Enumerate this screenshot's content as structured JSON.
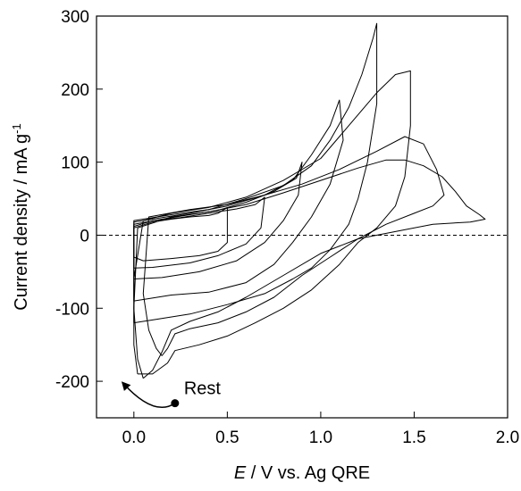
{
  "chart_data": {
    "type": "line",
    "title": "",
    "xlabel_italic": "E",
    "xlabel_rest": " / V vs. Ag QRE",
    "ylabel": "Current density / mA g",
    "ylabel_sup": "-1",
    "xlim": [
      -0.2,
      2.0
    ],
    "ylim": [
      -250,
      300
    ],
    "xticks": [
      0.0,
      0.5,
      1.0,
      1.5,
      2.0
    ],
    "xtick_labels": [
      "0.0",
      "0.5",
      "1.0",
      "1.5",
      "2.0"
    ],
    "yticks": [
      -200,
      -100,
      0,
      100,
      200,
      300
    ],
    "ytick_labels": [
      "-200",
      "-100",
      "0",
      "100",
      "200",
      "300"
    ],
    "grid": false,
    "zero_line": {
      "y": 0,
      "style": "dashed"
    },
    "annotation": {
      "text": "Rest",
      "start": [
        0.22,
        -230
      ],
      "end": [
        -0.06,
        -202
      ]
    },
    "series": [
      {
        "values": [
          [
            0.0,
            -30
          ],
          [
            0.0,
            10
          ],
          [
            0.1,
            18
          ],
          [
            0.2,
            22
          ],
          [
            0.3,
            25
          ],
          [
            0.4,
            27
          ],
          [
            0.45,
            30
          ],
          [
            0.5,
            38
          ],
          [
            0.5,
            -10
          ],
          [
            0.45,
            -22
          ],
          [
            0.35,
            -28
          ],
          [
            0.2,
            -32
          ],
          [
            0.05,
            -35
          ],
          [
            0.0,
            -30
          ]
        ]
      },
      {
        "values": [
          [
            0.0,
            -45
          ],
          [
            0.0,
            12
          ],
          [
            0.1,
            20
          ],
          [
            0.25,
            24
          ],
          [
            0.4,
            30
          ],
          [
            0.55,
            36
          ],
          [
            0.65,
            42
          ],
          [
            0.7,
            52
          ],
          [
            0.68,
            10
          ],
          [
            0.6,
            -12
          ],
          [
            0.45,
            -28
          ],
          [
            0.3,
            -38
          ],
          [
            0.1,
            -44
          ],
          [
            0.0,
            -45
          ]
        ]
      },
      {
        "values": [
          [
            0.0,
            -60
          ],
          [
            0.0,
            15
          ],
          [
            0.15,
            22
          ],
          [
            0.3,
            28
          ],
          [
            0.45,
            34
          ],
          [
            0.6,
            45
          ],
          [
            0.75,
            60
          ],
          [
            0.87,
            78
          ],
          [
            0.9,
            100
          ],
          [
            0.88,
            55
          ],
          [
            0.8,
            20
          ],
          [
            0.7,
            -10
          ],
          [
            0.55,
            -35
          ],
          [
            0.35,
            -50
          ],
          [
            0.15,
            -58
          ],
          [
            0.0,
            -60
          ]
        ]
      },
      {
        "values": [
          [
            0.0,
            -90
          ],
          [
            0.0,
            18
          ],
          [
            0.15,
            24
          ],
          [
            0.3,
            30
          ],
          [
            0.5,
            40
          ],
          [
            0.7,
            55
          ],
          [
            0.85,
            75
          ],
          [
            0.95,
            110
          ],
          [
            1.05,
            150
          ],
          [
            1.1,
            185
          ],
          [
            1.12,
            130
          ],
          [
            1.05,
            70
          ],
          [
            0.95,
            25
          ],
          [
            0.85,
            -10
          ],
          [
            0.75,
            -40
          ],
          [
            0.6,
            -65
          ],
          [
            0.4,
            -78
          ],
          [
            0.2,
            -82
          ],
          [
            0.05,
            -88
          ],
          [
            0.0,
            -90
          ]
        ]
      },
      {
        "values": [
          [
            0.0,
            -120
          ],
          [
            0.0,
            20
          ],
          [
            0.2,
            28
          ],
          [
            0.4,
            35
          ],
          [
            0.6,
            50
          ],
          [
            0.8,
            68
          ],
          [
            0.95,
            95
          ],
          [
            1.05,
            130
          ],
          [
            1.15,
            175
          ],
          [
            1.22,
            220
          ],
          [
            1.28,
            270
          ],
          [
            1.3,
            290
          ],
          [
            1.3,
            180
          ],
          [
            1.25,
            100
          ],
          [
            1.2,
            50
          ],
          [
            1.15,
            15
          ],
          [
            1.05,
            -20
          ],
          [
            0.95,
            -45
          ],
          [
            0.85,
            -60
          ],
          [
            0.7,
            -80
          ],
          [
            0.5,
            -95
          ],
          [
            0.3,
            -108
          ],
          [
            0.1,
            -116
          ],
          [
            0.0,
            -120
          ]
        ]
      },
      {
        "values": [
          [
            0.02,
            -190
          ],
          [
            0.0,
            -150
          ],
          [
            0.0,
            -60
          ],
          [
            0.05,
            20
          ],
          [
            0.2,
            30
          ],
          [
            0.4,
            38
          ],
          [
            0.6,
            52
          ],
          [
            0.8,
            75
          ],
          [
            1.0,
            105
          ],
          [
            1.15,
            150
          ],
          [
            1.3,
            195
          ],
          [
            1.4,
            220
          ],
          [
            1.48,
            225
          ],
          [
            1.48,
            150
          ],
          [
            1.45,
            80
          ],
          [
            1.4,
            40
          ],
          [
            1.3,
            10
          ],
          [
            1.2,
            -10
          ],
          [
            1.1,
            -40
          ],
          [
            0.95,
            -75
          ],
          [
            0.8,
            -100
          ],
          [
            0.65,
            -120
          ],
          [
            0.5,
            -138
          ],
          [
            0.35,
            -150
          ],
          [
            0.22,
            -158
          ],
          [
            0.18,
            -175
          ],
          [
            0.1,
            -190
          ],
          [
            0.02,
            -190
          ]
        ]
      },
      {
        "values": [
          [
            0.15,
            -165
          ],
          [
            0.12,
            -155
          ],
          [
            0.08,
            -130
          ],
          [
            0.05,
            -80
          ],
          [
            0.08,
            25
          ],
          [
            0.3,
            35
          ],
          [
            0.5,
            42
          ],
          [
            0.7,
            55
          ],
          [
            0.9,
            70
          ],
          [
            1.1,
            90
          ],
          [
            1.3,
            115
          ],
          [
            1.45,
            135
          ],
          [
            1.55,
            125
          ],
          [
            1.62,
            90
          ],
          [
            1.66,
            55
          ],
          [
            1.6,
            40
          ],
          [
            1.5,
            30
          ],
          [
            1.35,
            15
          ],
          [
            1.2,
            -5
          ],
          [
            1.05,
            -30
          ],
          [
            0.9,
            -55
          ],
          [
            0.75,
            -85
          ],
          [
            0.6,
            -105
          ],
          [
            0.45,
            -120
          ],
          [
            0.3,
            -128
          ],
          [
            0.22,
            -135
          ],
          [
            0.18,
            -155
          ],
          [
            0.15,
            -165
          ]
        ]
      },
      {
        "values": [
          [
            0.05,
            -196
          ],
          [
            0.02,
            -170
          ],
          [
            0.0,
            -100
          ],
          [
            0.02,
            10
          ],
          [
            0.2,
            25
          ],
          [
            0.4,
            32
          ],
          [
            0.6,
            42
          ],
          [
            0.8,
            58
          ],
          [
            1.0,
            75
          ],
          [
            1.2,
            92
          ],
          [
            1.35,
            103
          ],
          [
            1.45,
            103
          ],
          [
            1.55,
            95
          ],
          [
            1.65,
            80
          ],
          [
            1.72,
            60
          ],
          [
            1.78,
            40
          ],
          [
            1.85,
            28
          ],
          [
            1.88,
            22
          ],
          [
            1.8,
            18
          ],
          [
            1.6,
            15
          ],
          [
            1.4,
            5
          ],
          [
            1.2,
            -5
          ],
          [
            1.0,
            -25
          ],
          [
            0.8,
            -55
          ],
          [
            0.6,
            -85
          ],
          [
            0.45,
            -105
          ],
          [
            0.3,
            -118
          ],
          [
            0.2,
            -130
          ],
          [
            0.15,
            -160
          ],
          [
            0.1,
            -185
          ],
          [
            0.05,
            -196
          ]
        ]
      }
    ]
  }
}
